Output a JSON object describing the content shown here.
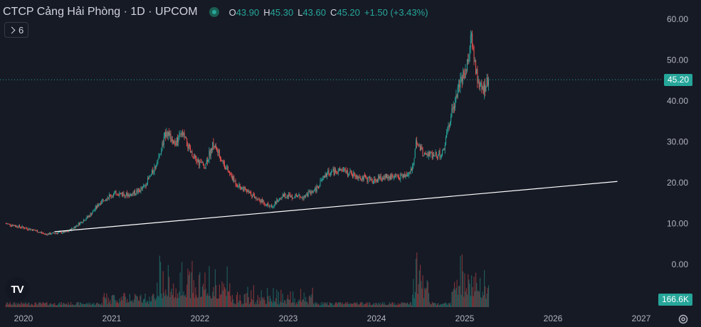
{
  "header": {
    "title": "CTCP Cảng Hải Phòng · 1D · UPCOM",
    "open_label": "O",
    "open": "43.90",
    "high_label": "H",
    "high": "45.30",
    "low_label": "L",
    "low": "43.60",
    "close_label": "C",
    "close": "45.20",
    "change": "+1.50 (+3.43%)"
  },
  "indicators": {
    "count": "6"
  },
  "colors": {
    "up": "#26a69a",
    "down": "#ef5350",
    "background": "#161a25",
    "trendline": "#ffffff"
  },
  "price_badge": "45.20",
  "volume_badge": "166.6K",
  "logo_text": "TV",
  "chart_data": {
    "type": "candlestick",
    "x_axis": {
      "ticks": [
        "2020",
        "2021",
        "2022",
        "2023",
        "2024",
        "2025",
        "2026",
        "2027"
      ],
      "range": [
        2019.8,
        2027.2
      ]
    },
    "y_axis": {
      "ticks": [
        "60.00",
        "50.00",
        "40.00",
        "30.00",
        "20.00",
        "10.00",
        "0.00"
      ],
      "range": [
        -4.3,
        61.8
      ]
    },
    "last_price": 45.2,
    "grid": false,
    "price_path": [
      [
        2019.8,
        10.0
      ],
      [
        2020.1,
        8.5
      ],
      [
        2020.25,
        7.4
      ],
      [
        2020.5,
        8.0
      ],
      [
        2020.6,
        9.5
      ],
      [
        2020.75,
        12.0
      ],
      [
        2020.9,
        16.0
      ],
      [
        2021.05,
        17.5
      ],
      [
        2021.2,
        17.0
      ],
      [
        2021.35,
        18.5
      ],
      [
        2021.45,
        22.0
      ],
      [
        2021.55,
        27.0
      ],
      [
        2021.62,
        33.0
      ],
      [
        2021.7,
        29.0
      ],
      [
        2021.8,
        32.0
      ],
      [
        2021.92,
        26.0
      ],
      [
        2022.05,
        24.0
      ],
      [
        2022.15,
        29.5
      ],
      [
        2022.3,
        23.5
      ],
      [
        2022.4,
        20.0
      ],
      [
        2022.55,
        17.5
      ],
      [
        2022.7,
        15.5
      ],
      [
        2022.8,
        14.0
      ],
      [
        2022.95,
        17.0
      ],
      [
        2023.15,
        16.5
      ],
      [
        2023.3,
        18.0
      ],
      [
        2023.45,
        22.5
      ],
      [
        2023.6,
        23.0
      ],
      [
        2023.8,
        21.5
      ],
      [
        2023.95,
        20.5
      ],
      [
        2024.1,
        21.5
      ],
      [
        2024.3,
        21.5
      ],
      [
        2024.4,
        23.0
      ],
      [
        2024.45,
        30.0
      ],
      [
        2024.55,
        26.5
      ],
      [
        2024.65,
        27.0
      ],
      [
        2024.75,
        27.0
      ],
      [
        2024.85,
        37.0
      ],
      [
        2024.95,
        45.0
      ],
      [
        2025.02,
        48.0
      ],
      [
        2025.08,
        56.0
      ],
      [
        2025.1,
        51.0
      ],
      [
        2025.15,
        45.0
      ],
      [
        2025.2,
        42.5
      ],
      [
        2025.27,
        45.2
      ]
    ],
    "trendline": [
      [
        2020.35,
        8.0
      ],
      [
        2026.73,
        20.3
      ]
    ]
  }
}
